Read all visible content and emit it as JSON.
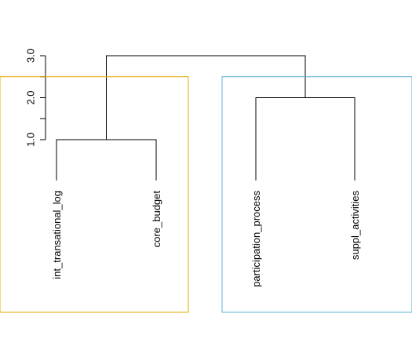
{
  "chart_data": {
    "type": "dendrogram",
    "title": "",
    "xlabel": "",
    "ylabel": "",
    "ylim": [
      0,
      3.0
    ],
    "y_ticks": [
      1.0,
      1.5,
      2.0,
      2.5,
      3.0
    ],
    "y_tick_labels": [
      "1.0",
      "",
      "2.0",
      "",
      "3.0"
    ],
    "leaves": [
      "int_transational_log",
      "core_budget",
      "participation_process",
      "suppl_activities"
    ],
    "merges": [
      {
        "left": "int_transational_log",
        "right": "core_budget",
        "height": 1.0
      },
      {
        "left": "participation_process",
        "right": "suppl_activities",
        "height": 2.0
      },
      {
        "left": "cluster_1",
        "right": "cluster_2",
        "height": 3.0
      }
    ],
    "cut_height": 2.5,
    "cluster_boxes": [
      {
        "color": "#e6ab02",
        "leaves": [
          "int_transational_log",
          "core_budget"
        ]
      },
      {
        "color": "#5ab4d6",
        "leaves": [
          "participation_process",
          "suppl_activities"
        ]
      }
    ],
    "grid": false,
    "legend": "none",
    "colors": {
      "tree": "#000000",
      "axis": "#000000",
      "cluster_1": "#e6ab02",
      "cluster_2": "#5ab4d6"
    }
  }
}
